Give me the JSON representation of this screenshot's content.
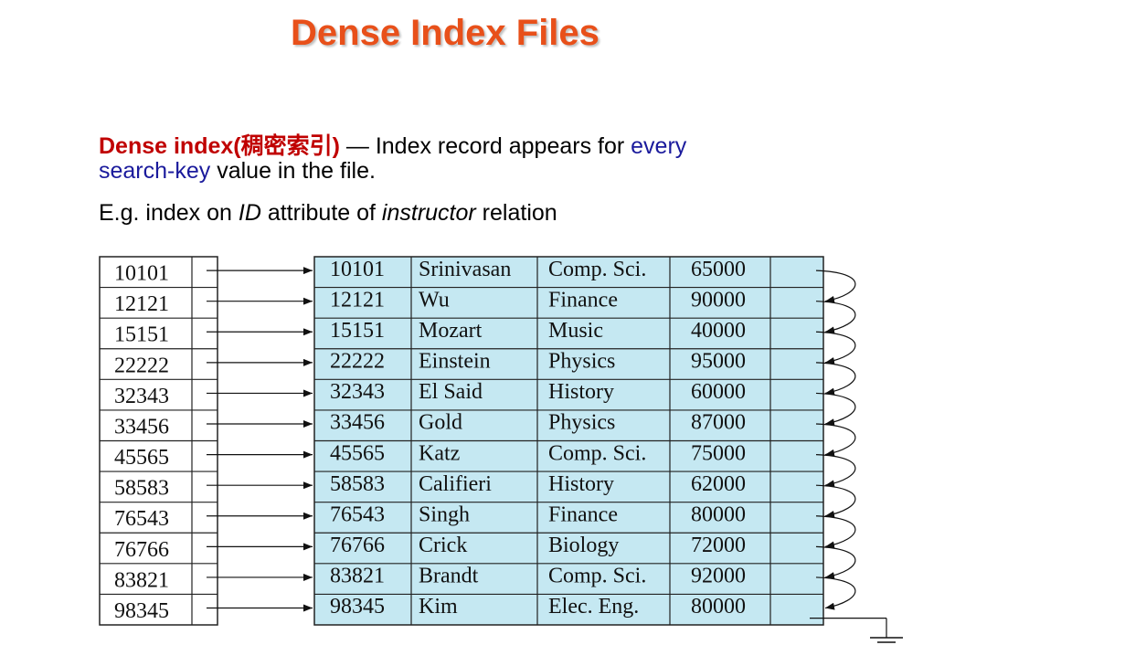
{
  "title": "Dense Index Files",
  "definition": {
    "term": "Dense index(稠密索引)",
    "dash": " — Index record appears for ",
    "every": "every",
    "search_key": "search-key",
    "rest": " value in the file."
  },
  "example": {
    "prefix": "E.g. index on ",
    "id": "ID",
    "middle": " attribute of ",
    "relation": "instructor",
    "suffix": " relation"
  },
  "colors": {
    "title": "#e8501a",
    "term": "#c00000",
    "highlight": "#1a1a9c",
    "record_fill": "#c5e8f2"
  },
  "index_keys": [
    "10101",
    "12121",
    "15151",
    "22222",
    "32343",
    "33456",
    "45565",
    "58583",
    "76543",
    "76766",
    "83821",
    "98345"
  ],
  "records": [
    [
      "10101",
      "Srinivasan",
      "Comp. Sci.",
      "65000"
    ],
    [
      "12121",
      "Wu",
      "Finance",
      "90000"
    ],
    [
      "15151",
      "Mozart",
      "Music",
      "40000"
    ],
    [
      "22222",
      "Einstein",
      "Physics",
      "95000"
    ],
    [
      "32343",
      "El Said",
      "History",
      "60000"
    ],
    [
      "33456",
      "Gold",
      "Physics",
      "87000"
    ],
    [
      "45565",
      "Katz",
      "Comp. Sci.",
      "75000"
    ],
    [
      "58583",
      "Califieri",
      "History",
      "62000"
    ],
    [
      "76543",
      "Singh",
      "Finance",
      "80000"
    ],
    [
      "76766",
      "Crick",
      "Biology",
      "72000"
    ],
    [
      "83821",
      "Brandt",
      "Comp. Sci.",
      "92000"
    ],
    [
      "98345",
      "Kim",
      "Elec. Eng.",
      "80000"
    ]
  ]
}
